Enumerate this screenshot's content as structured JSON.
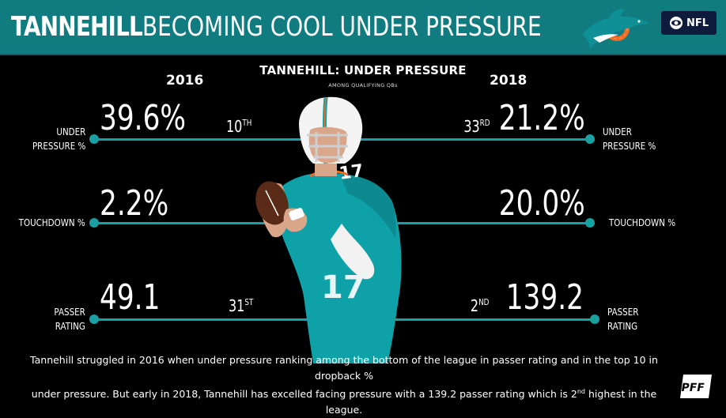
{
  "header": {
    "title_strong": "TANNEHILL",
    "title_rest": "BECOMING COOL UNDER PRESSURE",
    "logo_icon": "dolphin-logo-icon",
    "network": "NFL",
    "network_icon": "cbs-eye-icon"
  },
  "chart": {
    "title": "TANNEHILL: UNDER PRESSURE",
    "subtitle": "AMONG QUALIFYING QBs",
    "year_left": "2016",
    "year_right": "2018"
  },
  "metrics": [
    {
      "label_left_line1": "UNDER",
      "label_left_line2": "PRESSURE %",
      "value_2016": "39.6%",
      "value_2018": "21.2%",
      "rank_2016": "10",
      "rank_2016_suffix": "TH",
      "rank_2018": "33",
      "rank_2018_suffix": "RD",
      "label_right_line1": "UNDER",
      "label_right_line2": "PRESSURE %"
    },
    {
      "label_left_line1": "TOUCHDOWN %",
      "value_2016": "2.2%",
      "value_2018": "20.0%",
      "label_right_line1": "TOUCHDOWN %"
    },
    {
      "label_left_line1": "PASSER",
      "label_left_line2": "RATING",
      "value_2016": "49.1",
      "value_2018": "139.2",
      "rank_2016": "31",
      "rank_2016_suffix": "ST",
      "rank_2018": "2",
      "rank_2018_suffix": "ND",
      "label_right_line1": "PASSER",
      "label_right_line2": "RATING"
    }
  ],
  "footer": {
    "line1": "Tannehill struggled in 2016 when under pressure ranking among the bottom of the league in passer rating and in the top 10 in dropback %",
    "line2_a": "under pressure. But early in 2018, Tannehill has excelled facing pressure with a 139.2 passer rating which is 2",
    "line2_sup": "nd",
    "line2_b": " highest in the league."
  },
  "brand": {
    "pff_icon": "pff-logo-icon",
    "accent": "#1a9fa3",
    "header_bg": "#117C80"
  }
}
